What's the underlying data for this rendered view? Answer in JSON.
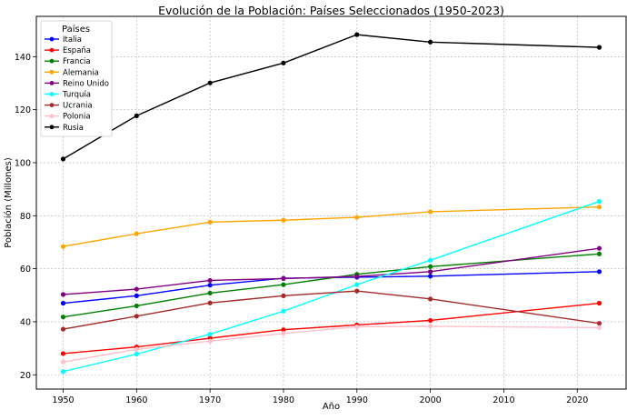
{
  "chart_data": {
    "type": "line",
    "title": "Evolución de la Población: Países Seleccionados (1950-2023)",
    "xlabel": "Año",
    "ylabel": "Población (Millones)",
    "x": [
      1950,
      1960,
      1970,
      1980,
      1990,
      2000,
      2023
    ],
    "xlim": [
      1946.35,
      2026.65
    ],
    "ylim": [
      14.6,
      155.2
    ],
    "xticks": [
      1950,
      1960,
      1970,
      1980,
      1990,
      2000,
      2010,
      2020
    ],
    "yticks": [
      20,
      40,
      60,
      80,
      100,
      120,
      140
    ],
    "grid": true,
    "legend_title": "Países",
    "legend_position": "top-left",
    "series": [
      {
        "name": "Italia",
        "color": "#0000ff",
        "values": [
          47.0,
          49.8,
          53.8,
          56.4,
          56.8,
          57.2,
          58.9
        ]
      },
      {
        "name": "España",
        "color": "#ff0000",
        "values": [
          28.0,
          30.5,
          33.8,
          37.0,
          38.8,
          40.5,
          47.0
        ]
      },
      {
        "name": "Francia",
        "color": "#008000",
        "values": [
          41.8,
          46.0,
          50.8,
          54.0,
          57.9,
          60.8,
          65.6
        ]
      },
      {
        "name": "Alemania",
        "color": "#ffa500",
        "values": [
          68.4,
          73.2,
          77.6,
          78.3,
          79.4,
          81.5,
          83.3
        ]
      },
      {
        "name": "Reino Unido",
        "color": "#800080",
        "values": [
          50.3,
          52.3,
          55.6,
          56.3,
          57.1,
          58.9,
          67.7
        ]
      },
      {
        "name": "Turquía",
        "color": "#00ffff",
        "values": [
          21.2,
          27.8,
          35.3,
          44.0,
          54.0,
          63.2,
          85.4
        ]
      },
      {
        "name": "Ucrania",
        "color": "#a52a2a",
        "values": [
          37.2,
          42.1,
          47.1,
          49.8,
          51.6,
          48.6,
          39.4
        ]
      },
      {
        "name": "Polonia",
        "color": "#ffc0cb",
        "values": [
          24.8,
          29.6,
          32.7,
          35.6,
          38.1,
          38.3,
          37.8
        ]
      },
      {
        "name": "Rusia",
        "color": "#000000",
        "values": [
          101.4,
          117.7,
          130.1,
          137.6,
          148.3,
          145.5,
          143.5
        ]
      }
    ]
  }
}
